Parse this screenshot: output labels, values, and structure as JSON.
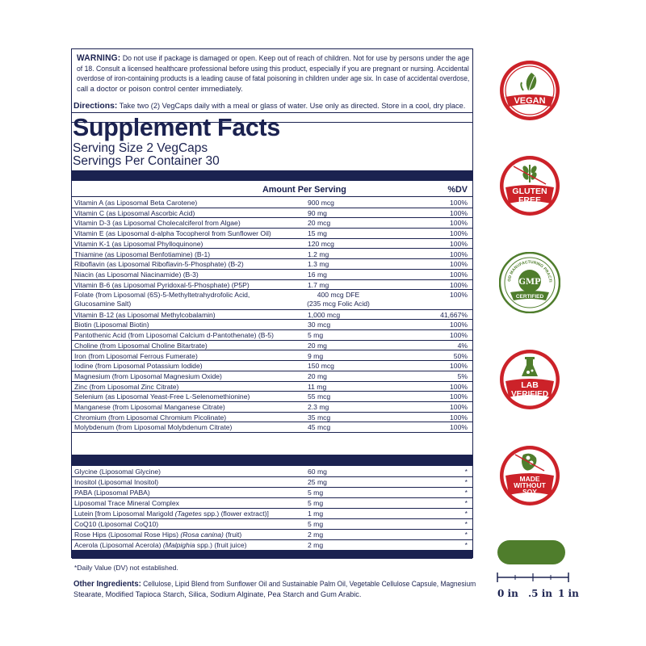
{
  "warning": {
    "label": "WARNING:",
    "lines": [
      "Do not use if package is damaged or open. Keep out of reach of children. Not for use by persons under the age",
      "of 18. Consult a licensed healthcare professional before using this product, especially if you are pregnant or nursing. Accidental",
      "overdose of iron-containing products is a leading cause of fatal poisoning in children under age six. In case of accidental overdose,",
      "call a doctor or poison control center immediately."
    ]
  },
  "directions": {
    "label": "Directions:",
    "text": "Take two (2) VegCaps daily with a meal or glass of water. Use only as directed. Store in a cool, dry place."
  },
  "facts": {
    "title": "Supplement Facts",
    "serving_size": "Serving Size 2 VegCaps",
    "servings_per_container": "Servings Per Container 30",
    "header_amount": "Amount Per Serving",
    "header_dv": "%DV",
    "vitamins": [
      {
        "name": "Vitamin A (as Liposomal Beta Carotene)",
        "amount": "900 mcg",
        "dv": "100%"
      },
      {
        "name": "Vitamin C (as Liposomal Ascorbic Acid)",
        "amount": "90 mg",
        "dv": "100%"
      },
      {
        "name": "Vitamin D-3 (as Liposomal Cholecalciferol from Algae)",
        "amount": "20 mcg",
        "dv": "100%"
      },
      {
        "name": "Vitamin E (as Liposomal d-alpha Tocopherol from Sunflower Oil)",
        "amount": "15 mg",
        "dv": "100%"
      },
      {
        "name": "Vitamin K-1 (as Liposomal Phylloquinone)",
        "amount": "120 mcg",
        "dv": "100%"
      },
      {
        "name": "Thiamine (as Liposomal Benfotiamine) (B-1)",
        "amount": "1.2 mg",
        "dv": "100%"
      },
      {
        "name": "Riboflavin (as Liposomal Riboflavin-5-Phosphate) (B-2)",
        "amount": "1.3 mg",
        "dv": "100%"
      },
      {
        "name": "Niacin (as Liposomal Niacinamide) (B-3)",
        "amount": "16 mg",
        "dv": "100%"
      },
      {
        "name": "Vitamin B-6 (as Liposomal Pyridoxal-5-Phosphate) (P5P)",
        "amount": "1.7 mg",
        "dv": "100%"
      },
      {
        "name": "Folate (from Liposomal (6S)-5-Methyltetrahydrofolic Acid,",
        "name2": "Glucosamine Salt)",
        "amount": "400 mcg DFE",
        "amount2": "(235 mcg Folic Acid)",
        "dv": "100%"
      },
      {
        "name": "Vitamin B-12 (as Liposomal Methylcobalamin)",
        "amount": "1,000 mcg",
        "dv": "41,667%"
      },
      {
        "name": "Biotin (Liposomal Biotin)",
        "amount": "30 mcg",
        "dv": "100%"
      },
      {
        "name": "Pantothenic Acid (from Liposomal Calcium d-Pantothenate) (B-5)",
        "amount": "5 mg",
        "dv": "100%"
      },
      {
        "name": "Choline (from Liposomal Choline Bitartrate)",
        "amount": "20 mg",
        "dv": "4%"
      },
      {
        "name": "Iron (from Liposomal Ferrous Fumerate)",
        "amount": "9 mg",
        "dv": "50%"
      },
      {
        "name": "Iodine (from Liposomal Potassium Iodide)",
        "amount": "150 mcg",
        "dv": "100%"
      },
      {
        "name": "Magnesium (from Liposomal Magnesium Oxide)",
        "amount": "20 mg",
        "dv": "5%"
      },
      {
        "name": "Zinc (from Liposomal Zinc Citrate)",
        "amount": "11 mg",
        "dv": "100%"
      },
      {
        "name": "Selenium (as Liposomal Yeast-Free L-Selenomethionine)",
        "amount": "55 mcg",
        "dv": "100%"
      },
      {
        "name": "Manganese (from Liposomal Manganese Citrate)",
        "amount": "2.3 mg",
        "dv": "100%"
      },
      {
        "name": "Chromium (from Liposomal Chromium Picolinate)",
        "amount": "35 mcg",
        "dv": "100%"
      },
      {
        "name": "Molybdenum (from Liposomal Molybdenum Citrate)",
        "amount": "45 mcg",
        "dv": "100%"
      }
    ],
    "others": [
      {
        "name": "Glycine (Liposomal Glycine)",
        "amount": "60 mg",
        "dv": "*"
      },
      {
        "name": "Inositol (Liposomal Inositol)",
        "amount": "25 mg",
        "dv": "*"
      },
      {
        "name": "PABA (Liposomal PABA)",
        "amount": "5 mg",
        "dv": "*"
      },
      {
        "name": "Liposomal Trace Mineral Complex",
        "amount": "5 mg",
        "dv": "*"
      },
      {
        "name": "Lutein [from Liposomal Marigold ",
        "italic": "(Tagetes",
        "tail": " spp.) (flower extract)]",
        "amount": "1 mg",
        "dv": "*"
      },
      {
        "name": "CoQ10 (Liposomal CoQ10)",
        "amount": "5 mg",
        "dv": "*"
      },
      {
        "name": "Rose Hips (Liposomal Rose Hips) ",
        "italic": "(Rosa canina)",
        "tail": " (fruit)",
        "amount": "2 mg",
        "dv": "*"
      },
      {
        "name": "Acerola (Liposomal Acerola) ",
        "italic": "(Malpighia",
        "tail": " spp.) (fruit juice)",
        "amount": "2 mg",
        "dv": "*"
      }
    ],
    "footnote": "*Daily Value (DV) not established."
  },
  "other_ingredients": {
    "label": "Other Ingredients:",
    "line1": "Cellulose, Lipid Blend from Sunflower Oil and Sustainable Palm Oil, Vegetable Cellulose Capsule, Magnesium",
    "line2": "Stearate, Modified Tapioca Starch, Silica, Sodium Alginate, Pea Starch and Gum Arabic."
  },
  "badges": {
    "vegan": "VEGAN",
    "gluten_free_1": "GLUTEN",
    "gluten_free_2": "FREE",
    "gmp": "GMP",
    "gmp_top": "GOOD MANUFACTURING PRACTICE",
    "gmp_bottom": "CERTIFIED",
    "lab_1": "LAB",
    "lab_2": "VERIFIED",
    "soy_1": "MADE",
    "soy_2": "WITHOUT",
    "soy_3": "SOY"
  },
  "ruler": {
    "label_0": "0 in",
    "label_mid": ".5 in",
    "label_1": "1 in"
  },
  "colors": {
    "navy": "#1b2250",
    "badge_red": "#cc2229",
    "badge_green": "#4f7d2c"
  }
}
